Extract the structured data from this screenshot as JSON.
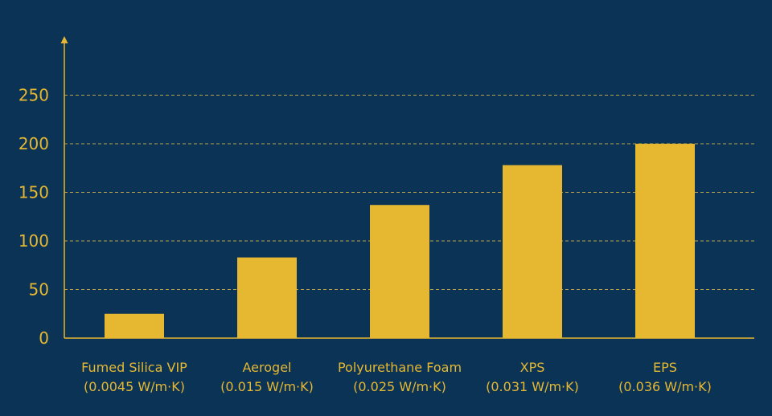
{
  "colors": {
    "background": "#0b3356",
    "accent": "#e6b832",
    "grid": "#d9b54a"
  },
  "chart_data": {
    "type": "bar",
    "title": "",
    "xlabel": "",
    "ylabel": "",
    "categories": [
      [
        "Fumed Silica VIP",
        "(0.0045 W/m·K)"
      ],
      [
        "Aerogel",
        "(0.015 W/m·K)"
      ],
      [
        "Polyurethane Foam",
        "(0.025 W/m·K)"
      ],
      [
        "XPS",
        "(0.031 W/m·K)"
      ],
      [
        "EPS",
        "(0.036 W/m·K)"
      ]
    ],
    "values": [
      25,
      83,
      137,
      178,
      200
    ],
    "ylim": [
      0,
      250
    ],
    "yticks": [
      "0",
      "50",
      "100",
      "150",
      "200",
      "250"
    ],
    "grid": true,
    "legend": "none"
  }
}
